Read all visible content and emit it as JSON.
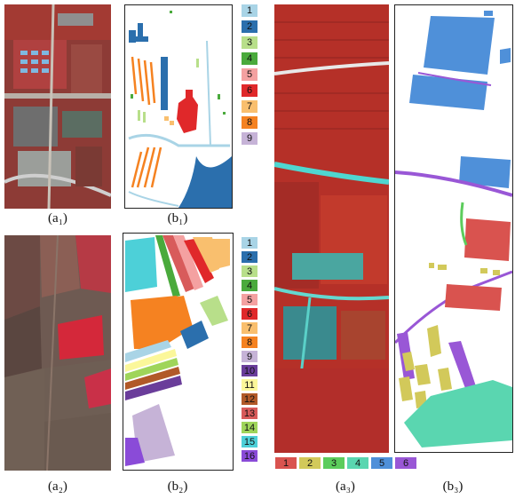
{
  "captions": {
    "a1": "(a₁)",
    "b1": "(b₁)",
    "a2": "(a₂)",
    "b2": "(b₂)",
    "a3": "(a₃)",
    "b3": "(b₃)"
  },
  "legend1": [
    {
      "label": "1",
      "color": "#a9d4e6"
    },
    {
      "label": "2",
      "color": "#2b6fad"
    },
    {
      "label": "3",
      "color": "#b8df8a"
    },
    {
      "label": "4",
      "color": "#4aaa3c"
    },
    {
      "label": "5",
      "color": "#f4a1a1"
    },
    {
      "label": "6",
      "color": "#e0282a"
    },
    {
      "label": "7",
      "color": "#f9bf6e"
    },
    {
      "label": "8",
      "color": "#f58221"
    },
    {
      "label": "9",
      "color": "#c6b3d7"
    }
  ],
  "legend2": [
    {
      "label": "1",
      "color": "#a9d4e6"
    },
    {
      "label": "2",
      "color": "#2b6fad"
    },
    {
      "label": "3",
      "color": "#b8df8a"
    },
    {
      "label": "4",
      "color": "#4aaa3c"
    },
    {
      "label": "5",
      "color": "#f4a1a1"
    },
    {
      "label": "6",
      "color": "#e0282a"
    },
    {
      "label": "7",
      "color": "#f9bf6e"
    },
    {
      "label": "8",
      "color": "#f58221"
    },
    {
      "label": "9",
      "color": "#c6b3d7"
    },
    {
      "label": "10",
      "color": "#6a3d9a"
    },
    {
      "label": "11",
      "color": "#fbf79a"
    },
    {
      "label": "12",
      "color": "#b15928"
    },
    {
      "label": "13",
      "color": "#d85b5b"
    },
    {
      "label": "14",
      "color": "#9fd55a"
    },
    {
      "label": "15",
      "color": "#4dd0d8"
    },
    {
      "label": "16",
      "color": "#8a4bd8"
    }
  ],
  "legend3": [
    {
      "label": "1",
      "color": "#d9534f"
    },
    {
      "label": "2",
      "color": "#d2c95a"
    },
    {
      "label": "3",
      "color": "#5ccc5c"
    },
    {
      "label": "4",
      "color": "#5ad6b0"
    },
    {
      "label": "5",
      "color": "#4f90d9"
    },
    {
      "label": "6",
      "color": "#9957d6"
    }
  ]
}
